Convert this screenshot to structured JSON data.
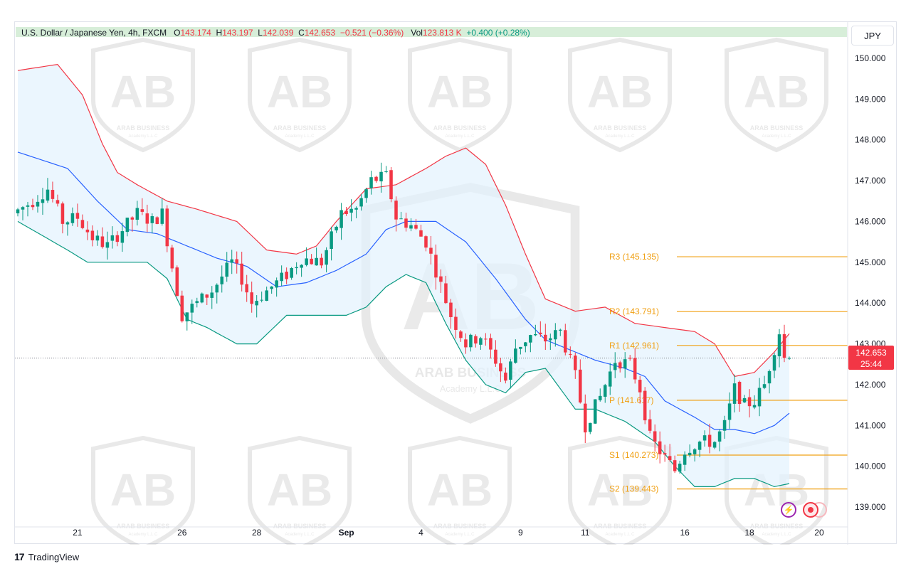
{
  "legend": {
    "symbol": "U.S. Dollar / Japanese Yen, 4h, FXCM",
    "o_label": "O",
    "o_value": "143.174",
    "h_label": "H",
    "h_value": "143.197",
    "l_label": "L",
    "l_value": "142.039",
    "c_label": "C",
    "c_value": "142.653",
    "change": "−0.521 (−0.36%)",
    "vol_label": "Vol",
    "vol_value": "123.813 K",
    "vol_change": "+0.400 (+0.28%)"
  },
  "currency": "JPY",
  "price_badge": {
    "price": "142.653",
    "countdown": "25:44"
  },
  "brand": {
    "logo": "17",
    "name": "TradingView"
  },
  "watermark": {
    "text": "ARAB BUSINESS",
    "subtext": "Academy L.L.C"
  },
  "colors": {
    "up": "#089981",
    "down": "#f23645",
    "basis": "#2962ff",
    "upper_band": "#f23645",
    "lower_band": "#089981",
    "band_fill": "#e3f2fd",
    "pivot": "#f0a014",
    "last_price_line": "#787b86"
  },
  "chart_data": {
    "type": "candlestick",
    "ylim": [
      138.6,
      150.4
    ],
    "y_ticks": [
      "139.000",
      "140.000",
      "141.000",
      "142.000",
      "143.000",
      "144.000",
      "145.000",
      "146.000",
      "147.000",
      "148.000",
      "149.000",
      "150.000"
    ],
    "x_ticks": [
      {
        "label": "21",
        "index": 12
      },
      {
        "label": "26",
        "index": 33
      },
      {
        "label": "28",
        "index": 48
      },
      {
        "label": "Sep",
        "index": 66
      },
      {
        "label": "4",
        "index": 81
      },
      {
        "label": "9",
        "index": 101
      },
      {
        "label": "11",
        "index": 114
      },
      {
        "label": "16",
        "index": 134
      },
      {
        "label": "18",
        "index": 147
      },
      {
        "label": "20",
        "index": 161
      }
    ],
    "last_price": 142.653,
    "pivot_levels": [
      {
        "name": "R3",
        "value": 145.135,
        "label": "R3 (145.135)"
      },
      {
        "name": "R2",
        "value": 143.791,
        "label": "R2 (143.791)"
      },
      {
        "name": "R1",
        "value": 142.961,
        "label": "R1 (142.961)"
      },
      {
        "name": "P",
        "value": 141.617,
        "label": "P (141.617)"
      },
      {
        "name": "S1",
        "value": 140.273,
        "label": "S1 (140.273)"
      },
      {
        "name": "S2",
        "value": 139.443,
        "label": "S2 (139.443)"
      }
    ],
    "bands_anchors": {
      "upper": [
        [
          0,
          149.7
        ],
        [
          8,
          149.85
        ],
        [
          13,
          149.1
        ],
        [
          17,
          147.9
        ],
        [
          20,
          147.2
        ],
        [
          24,
          146.9
        ],
        [
          30,
          146.5
        ],
        [
          36,
          146.3
        ],
        [
          44,
          146.0
        ],
        [
          50,
          145.3
        ],
        [
          56,
          145.2
        ],
        [
          60,
          145.4
        ],
        [
          64,
          146.0
        ],
        [
          70,
          146.8
        ],
        [
          76,
          146.9
        ],
        [
          82,
          147.3
        ],
        [
          86,
          147.6
        ],
        [
          90,
          147.8
        ],
        [
          94,
          147.4
        ],
        [
          98,
          146.4
        ],
        [
          102,
          145.2
        ],
        [
          106,
          144.1
        ],
        [
          112,
          143.8
        ],
        [
          118,
          143.9
        ],
        [
          124,
          143.5
        ],
        [
          130,
          143.4
        ],
        [
          136,
          143.3
        ],
        [
          140,
          143.0
        ],
        [
          144,
          142.2
        ],
        [
          148,
          142.3
        ],
        [
          152,
          142.8
        ],
        [
          156,
          143.4
        ]
      ],
      "basis": [
        [
          0,
          147.7
        ],
        [
          10,
          147.3
        ],
        [
          16,
          146.5
        ],
        [
          22,
          145.8
        ],
        [
          28,
          145.7
        ],
        [
          34,
          145.4
        ],
        [
          40,
          145.1
        ],
        [
          46,
          144.9
        ],
        [
          52,
          144.4
        ],
        [
          58,
          144.5
        ],
        [
          64,
          144.8
        ],
        [
          70,
          145.2
        ],
        [
          74,
          145.8
        ],
        [
          78,
          146.0
        ],
        [
          84,
          146.0
        ],
        [
          90,
          145.5
        ],
        [
          96,
          144.6
        ],
        [
          102,
          143.6
        ],
        [
          106,
          143.1
        ],
        [
          112,
          142.8
        ],
        [
          116,
          142.6
        ],
        [
          122,
          142.4
        ],
        [
          126,
          142.2
        ],
        [
          130,
          141.6
        ],
        [
          136,
          141.2
        ],
        [
          140,
          140.9
        ],
        [
          144,
          140.9
        ],
        [
          148,
          140.8
        ],
        [
          152,
          141.0
        ],
        [
          156,
          141.4
        ]
      ],
      "lower": [
        [
          0,
          146.0
        ],
        [
          10,
          145.3
        ],
        [
          14,
          145.0
        ],
        [
          20,
          145.0
        ],
        [
          26,
          145.0
        ],
        [
          30,
          144.6
        ],
        [
          34,
          143.6
        ],
        [
          38,
          143.4
        ],
        [
          44,
          143.0
        ],
        [
          48,
          143.0
        ],
        [
          54,
          143.7
        ],
        [
          60,
          143.7
        ],
        [
          66,
          143.7
        ],
        [
          70,
          143.9
        ],
        [
          74,
          144.4
        ],
        [
          78,
          144.7
        ],
        [
          82,
          144.5
        ],
        [
          86,
          143.5
        ],
        [
          90,
          142.6
        ],
        [
          94,
          142.0
        ],
        [
          98,
          141.8
        ],
        [
          102,
          142.3
        ],
        [
          106,
          142.4
        ],
        [
          112,
          141.4
        ],
        [
          116,
          141.4
        ],
        [
          122,
          141.1
        ],
        [
          128,
          140.6
        ],
        [
          132,
          140.0
        ],
        [
          136,
          139.5
        ],
        [
          140,
          139.5
        ],
        [
          144,
          139.7
        ],
        [
          148,
          139.7
        ],
        [
          152,
          139.5
        ],
        [
          156,
          139.6
        ]
      ]
    },
    "candles_anchors": [
      [
        0,
        146.2
      ],
      [
        4,
        146.5
      ],
      [
        7,
        146.8
      ],
      [
        10,
        146.0
      ],
      [
        13,
        146.1
      ],
      [
        16,
        145.6
      ],
      [
        19,
        145.4
      ],
      [
        22,
        145.8
      ],
      [
        25,
        146.2
      ],
      [
        28,
        146.0
      ],
      [
        30,
        146.2
      ],
      [
        32,
        144.9
      ],
      [
        34,
        143.7
      ],
      [
        36,
        143.9
      ],
      [
        40,
        144.3
      ],
      [
        44,
        145.0
      ],
      [
        46,
        144.6
      ],
      [
        48,
        144.0
      ],
      [
        52,
        144.4
      ],
      [
        55,
        144.7
      ],
      [
        58,
        145.1
      ],
      [
        62,
        145.0
      ],
      [
        66,
        146.2
      ],
      [
        69,
        146.3
      ],
      [
        72,
        147.0
      ],
      [
        75,
        147.1
      ],
      [
        77,
        146.1
      ],
      [
        80,
        145.9
      ],
      [
        83,
        145.5
      ],
      [
        85,
        144.8
      ],
      [
        88,
        143.7
      ],
      [
        91,
        143.0
      ],
      [
        94,
        143.2
      ],
      [
        97,
        142.6
      ],
      [
        99,
        142.1
      ],
      [
        101,
        142.9
      ],
      [
        104,
        143.2
      ],
      [
        107,
        143.1
      ],
      [
        110,
        143.3
      ],
      [
        113,
        142.2
      ],
      [
        115,
        141.0
      ],
      [
        118,
        141.7
      ],
      [
        121,
        142.6
      ],
      [
        124,
        142.5
      ],
      [
        126,
        141.9
      ],
      [
        128,
        140.7
      ],
      [
        131,
        140.2
      ],
      [
        133,
        139.9
      ],
      [
        135,
        140.4
      ],
      [
        138,
        140.6
      ],
      [
        141,
        140.6
      ],
      [
        143,
        141.0
      ],
      [
        145,
        141.9
      ],
      [
        147,
        141.5
      ],
      [
        149,
        141.6
      ],
      [
        151,
        142.0
      ],
      [
        153,
        142.9
      ],
      [
        154,
        143.3
      ],
      [
        155,
        142.653
      ]
    ],
    "n_candles": 156
  }
}
